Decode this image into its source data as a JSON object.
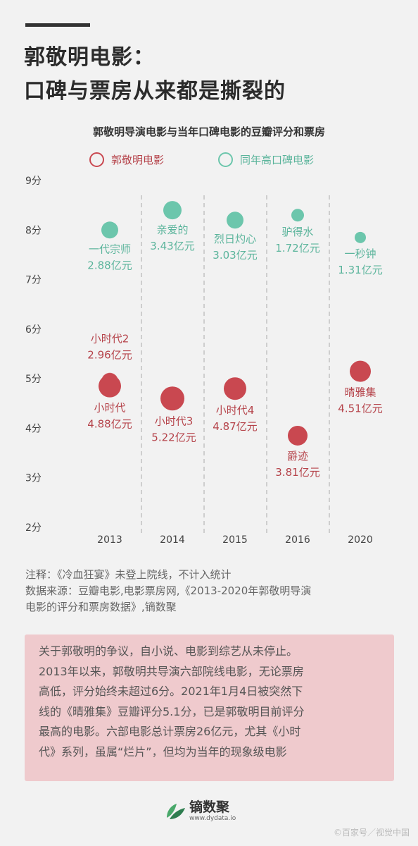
{
  "header": {
    "line1": "郭敬明电影：",
    "line2": "口碑与票房从来都是撕裂的"
  },
  "colors": {
    "guo": "#c94850",
    "guo_text": "#b5434a",
    "same_year": "#6cc6ac",
    "same_year_text": "#5ab49b"
  },
  "chart_data": {
    "type": "scatter",
    "title": "郭敬明导演电影与当年口碑电影的豆瓣评分和票房",
    "legend": [
      "郭敬明电影",
      "同年高口碑电影"
    ],
    "legend_placement": "top",
    "categories": [
      "2013",
      "2014",
      "2015",
      "2016",
      "2020"
    ],
    "yticks": [
      "2分",
      "3分",
      "4分",
      "5分",
      "6分",
      "7分",
      "8分",
      "9分"
    ],
    "ylim": [
      2,
      9
    ],
    "series": [
      {
        "name": "郭敬明电影",
        "points": [
          {
            "year": "2013",
            "title": "小时代2",
            "score": 4.95,
            "box_office": "2.96亿元",
            "label_pos": "above"
          },
          {
            "year": "2013",
            "title": "小时代",
            "score": 4.85,
            "box_office": "4.88亿元",
            "label_pos": "below"
          },
          {
            "year": "2014",
            "title": "小时代3",
            "score": 4.6,
            "box_office": "5.22亿元",
            "label_pos": "below"
          },
          {
            "year": "2015",
            "title": "小时代4",
            "score": 4.8,
            "box_office": "4.87亿元",
            "label_pos": "below"
          },
          {
            "year": "2016",
            "title": "爵迹",
            "score": 3.85,
            "box_office": "3.81亿元",
            "label_pos": "below"
          },
          {
            "year": "2020",
            "title": "晴雅集",
            "score": 5.15,
            "box_office": "4.51亿元",
            "label_pos": "below"
          }
        ]
      },
      {
        "name": "同年高口碑电影",
        "points": [
          {
            "year": "2013",
            "title": "一代宗师",
            "score": 8.0,
            "box_office": "2.88亿元",
            "label_pos": "below"
          },
          {
            "year": "2014",
            "title": "亲爱的",
            "score": 8.4,
            "box_office": "3.43亿元",
            "label_pos": "below"
          },
          {
            "year": "2015",
            "title": "烈日灼心",
            "score": 8.2,
            "box_office": "3.03亿元",
            "label_pos": "below"
          },
          {
            "year": "2016",
            "title": "驴得水",
            "score": 8.3,
            "box_office": "1.72亿元",
            "label_pos": "below"
          },
          {
            "year": "2020",
            "title": "一秒钟",
            "score": 7.85,
            "box_office": "1.31亿元",
            "label_pos": "below"
          }
        ]
      }
    ]
  },
  "notes": {
    "line1": "注释：《冷血狂宴》未登上院线，不计入统计",
    "line2": "数据来源：豆瓣电影,电影票房网,《2013-2020年郭敬明导演",
    "line3": "电影的评分和票房数据》,镝数聚"
  },
  "summary": {
    "lines": [
      "关于郭敬明的争议，自小说、电影到综艺从未停止。",
      "2013年以来，郭敬明共导演六部院线电影，无论票房",
      "高低，评分始终未超过6分。2021年1月4日被突然下",
      "线的《晴雅集》豆瓣评分5.1分，已是郭敬明目前评分",
      "最高的电影。六部电影总计票房26亿元，尤其《小时",
      "代》系列，虽属“烂片”，但均为当年的现象级电影"
    ]
  },
  "brand": {
    "name": "镝数聚",
    "url": "www.dydata.io"
  },
  "watermark": "©百家号／视觉中国"
}
